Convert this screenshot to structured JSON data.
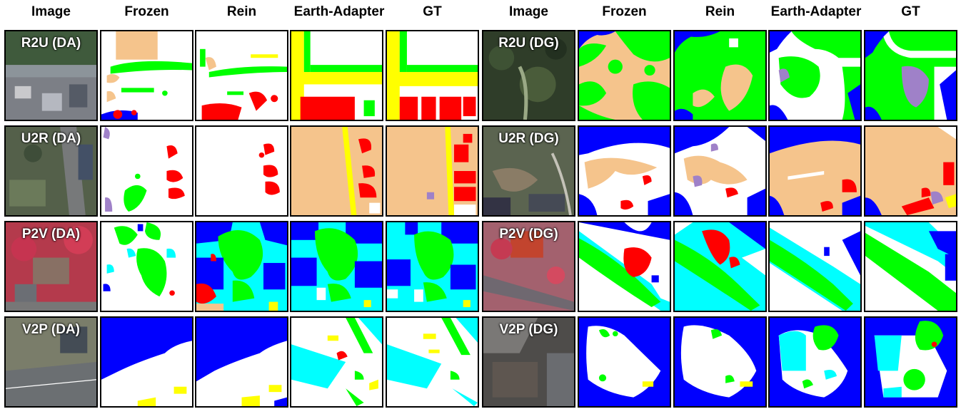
{
  "header_left": [
    "Image",
    "Frozen",
    "Rein",
    "Earth-Adapter",
    "GT"
  ],
  "header_right": [
    "Image",
    "Frozen",
    "Rein",
    "Earth-Adapter",
    "GT"
  ],
  "rows": [
    {
      "left_label": "R2U (DA)",
      "right_label": "R2U (DG)"
    },
    {
      "left_label": "U2R (DA)",
      "right_label": "U2R (DG)"
    },
    {
      "left_label": "P2V (DA)",
      "right_label": "P2V (DG)"
    },
    {
      "left_label": "V2P (DA)",
      "right_label": "V2P (DG)"
    }
  ],
  "class_colors": {
    "background": "#ffffff",
    "building": "#ff0000",
    "road": "#ffff00",
    "water": "#0000ff",
    "barren": "#9f81c8",
    "forest": "#00ff00",
    "agriculture": "#f5c48c",
    "low_vegetation": "#00ffff"
  }
}
